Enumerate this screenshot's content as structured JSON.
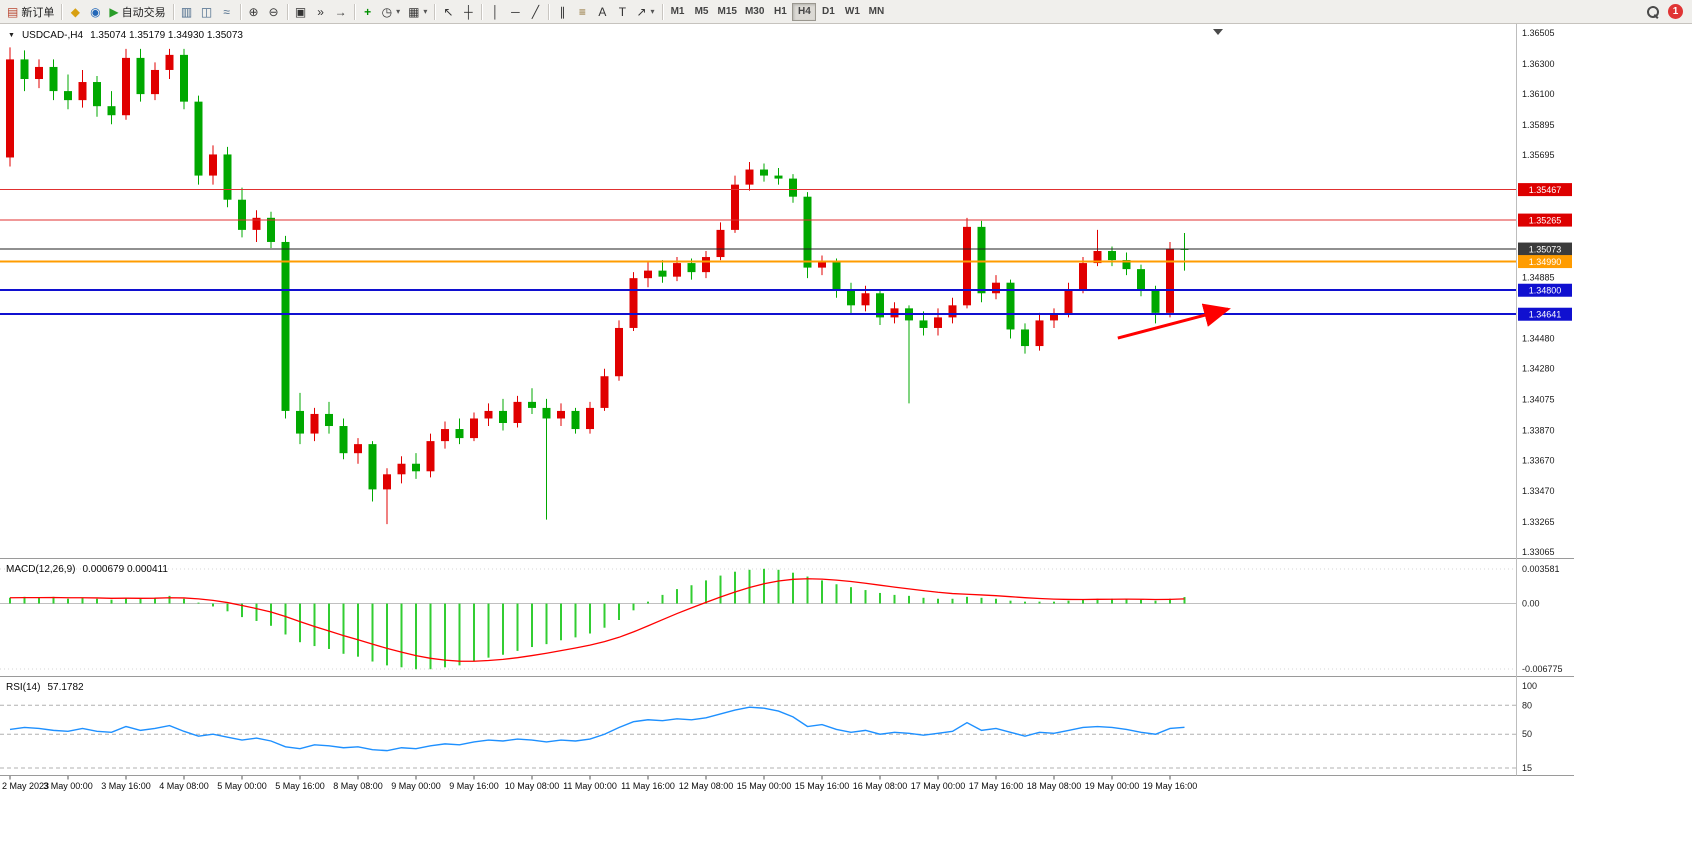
{
  "toolbar": {
    "new_order_label": "新订单",
    "algo_trading_label": "自动交易",
    "timeframes": [
      "M1",
      "M5",
      "M15",
      "M30",
      "H1",
      "H4",
      "D1",
      "W1",
      "MN"
    ],
    "active_timeframe": "H4",
    "notification_count": "1",
    "icons": {
      "new_order": "▤",
      "metaeditor": "◆",
      "market_watch": "◉",
      "algo_trading": "▶",
      "bar_chart": "▥",
      "candle_chart": "◫",
      "line_chart": "≈",
      "zoom_in": "⊕",
      "zoom_out": "⊖",
      "tile_windows": "▣",
      "auto_scroll": "»",
      "chart_shift": "→",
      "indicators": "+",
      "periods": "◷",
      "templates": "▦",
      "cursor": "↖",
      "crosshair": "┼",
      "vertical_line": "│",
      "horizontal_line": "─",
      "trend_line": "╱",
      "channel": "∥",
      "fibonacci": "≡",
      "text": "A",
      "text_label": "T",
      "arrow_tool": "↗",
      "dropdown": "▾"
    }
  },
  "main_chart": {
    "dropdown_glyph": "▼",
    "symbol_label": "USDCAD-,H4",
    "ohlc_label": "1.35074 1.35179 1.34930 1.35073"
  },
  "macd_panel": {
    "label": "MACD(12,26,9)",
    "values": "0.000679 0.000411"
  },
  "rsi_panel": {
    "label": "RSI(14)",
    "value": "57.1782"
  },
  "chart_data": [
    {
      "type": "candlestick",
      "symbol": "USDCAD-",
      "timeframe": "H4",
      "ohlc_current": {
        "open": 1.35074,
        "high": 1.35179,
        "low": 1.3493,
        "close": 1.35073
      },
      "price_range": [
        1.33065,
        1.36505
      ],
      "colors": {
        "bull": "#e00000",
        "bear": "#00a800"
      },
      "y_axis_labels": [
        "1.36505",
        "1.36300",
        "1.36100",
        "1.35895",
        "1.35695",
        "1.34885",
        "1.34480",
        "1.34280",
        "1.34075",
        "1.33870",
        "1.33670",
        "1.33470",
        "1.33265",
        "1.33065"
      ],
      "horizontal_lines": [
        {
          "price": 1.35467,
          "color": "#e03030",
          "width": 1,
          "badge": "1.35467",
          "badge_color": "#dd0000"
        },
        {
          "price": 1.35265,
          "color": "#e03030",
          "width": 1,
          "badge": "1.35265",
          "badge_color": "#dd0000"
        },
        {
          "price": 1.35073,
          "color": "#222222",
          "width": 1,
          "badge": "1.35073",
          "badge_color": "#3b3b3b"
        },
        {
          "price": 1.3499,
          "color": "#ff9c00",
          "width": 2,
          "badge": "1.34990",
          "badge_color": "#ff9c00"
        },
        {
          "price": 1.348,
          "color": "#1010d0",
          "width": 2,
          "badge": "1.34800",
          "badge_color": "#1010d0"
        },
        {
          "price": 1.34641,
          "color": "#1010d0",
          "width": 2,
          "badge": "1.34641",
          "badge_color": "#1010d0"
        }
      ],
      "annotations": [
        {
          "type": "arrow",
          "from": {
            "index": 76.4,
            "price": 1.34483
          },
          "to": {
            "index": 84.0,
            "price": 1.34675
          },
          "color": "#ff0000",
          "width": 3
        }
      ],
      "time_labels": [
        "2 May 2023",
        "3 May 00:00",
        "3 May 16:00",
        "4 May 08:00",
        "5 May 00:00",
        "5 May 16:00",
        "8 May 08:00",
        "9 May 00:00",
        "9 May 16:00",
        "10 May 08:00",
        "11 May 00:00",
        "11 May 16:00",
        "12 May 08:00",
        "15 May 00:00",
        "15 May 16:00",
        "16 May 08:00",
        "17 May 00:00",
        "17 May 16:00",
        "18 May 08:00",
        "19 May 00:00",
        "19 May 16:00"
      ],
      "label_every": 4,
      "candles": [
        [
          1.3568,
          1.3641,
          1.3562,
          1.3633
        ],
        [
          1.3633,
          1.3639,
          1.3612,
          1.362
        ],
        [
          1.362,
          1.3633,
          1.3614,
          1.3628
        ],
        [
          1.3628,
          1.3633,
          1.3606,
          1.3612
        ],
        [
          1.3612,
          1.3623,
          1.36,
          1.3606
        ],
        [
          1.3606,
          1.3626,
          1.3601,
          1.3618
        ],
        [
          1.3618,
          1.3622,
          1.3595,
          1.3602
        ],
        [
          1.3602,
          1.3612,
          1.359,
          1.3596
        ],
        [
          1.3596,
          1.364,
          1.3593,
          1.3634
        ],
        [
          1.3634,
          1.364,
          1.3605,
          1.361
        ],
        [
          1.361,
          1.3631,
          1.3606,
          1.3626
        ],
        [
          1.3626,
          1.364,
          1.362,
          1.3636
        ],
        [
          1.3636,
          1.364,
          1.36,
          1.3605
        ],
        [
          1.3605,
          1.3609,
          1.355,
          1.3556
        ],
        [
          1.3556,
          1.3576,
          1.355,
          1.357
        ],
        [
          1.357,
          1.3575,
          1.3535,
          1.354
        ],
        [
          1.354,
          1.3548,
          1.3515,
          1.352
        ],
        [
          1.352,
          1.3533,
          1.3512,
          1.3528
        ],
        [
          1.3528,
          1.3532,
          1.3508,
          1.3512
        ],
        [
          1.3512,
          1.3516,
          1.3395,
          1.34
        ],
        [
          1.34,
          1.3412,
          1.3378,
          1.3385
        ],
        [
          1.3385,
          1.3402,
          1.338,
          1.3398
        ],
        [
          1.3398,
          1.3406,
          1.3385,
          1.339
        ],
        [
          1.339,
          1.3395,
          1.3368,
          1.3372
        ],
        [
          1.3372,
          1.3382,
          1.3365,
          1.3378
        ],
        [
          1.3378,
          1.338,
          1.334,
          1.3348
        ],
        [
          1.3348,
          1.3362,
          1.3325,
          1.3358
        ],
        [
          1.3358,
          1.337,
          1.3352,
          1.3365
        ],
        [
          1.3365,
          1.3372,
          1.3355,
          1.336
        ],
        [
          1.336,
          1.3385,
          1.3356,
          1.338
        ],
        [
          1.338,
          1.3393,
          1.3375,
          1.3388
        ],
        [
          1.3388,
          1.3395,
          1.3378,
          1.3382
        ],
        [
          1.3382,
          1.3399,
          1.338,
          1.3395
        ],
        [
          1.3395,
          1.3405,
          1.339,
          1.34
        ],
        [
          1.34,
          1.3408,
          1.3387,
          1.3392
        ],
        [
          1.3392,
          1.341,
          1.3389,
          1.3406
        ],
        [
          1.3406,
          1.3415,
          1.3398,
          1.3402
        ],
        [
          1.3402,
          1.3408,
          1.3328,
          1.3395
        ],
        [
          1.3395,
          1.3405,
          1.339,
          1.34
        ],
        [
          1.34,
          1.3402,
          1.3385,
          1.3388
        ],
        [
          1.3388,
          1.3406,
          1.3385,
          1.3402
        ],
        [
          1.3402,
          1.3428,
          1.34,
          1.3423
        ],
        [
          1.3423,
          1.346,
          1.342,
          1.3455
        ],
        [
          1.3455,
          1.3492,
          1.3453,
          1.3488
        ],
        [
          1.3488,
          1.3499,
          1.3482,
          1.3493
        ],
        [
          1.3493,
          1.35,
          1.3485,
          1.3489
        ],
        [
          1.3489,
          1.3502,
          1.3486,
          1.3498
        ],
        [
          1.3498,
          1.3501,
          1.3487,
          1.3492
        ],
        [
          1.3492,
          1.3506,
          1.3488,
          1.3502
        ],
        [
          1.3502,
          1.3525,
          1.35,
          1.352
        ],
        [
          1.352,
          1.3556,
          1.3518,
          1.355
        ],
        [
          1.355,
          1.3565,
          1.3546,
          1.356
        ],
        [
          1.356,
          1.3564,
          1.3552,
          1.3556
        ],
        [
          1.3556,
          1.3561,
          1.355,
          1.3554
        ],
        [
          1.3554,
          1.3557,
          1.3538,
          1.3542
        ],
        [
          1.3542,
          1.3545,
          1.3488,
          1.3495
        ],
        [
          1.3495,
          1.3503,
          1.349,
          1.3499
        ],
        [
          1.3499,
          1.3501,
          1.3475,
          1.348
        ],
        [
          1.348,
          1.3485,
          1.3464,
          1.347
        ],
        [
          1.347,
          1.3483,
          1.3466,
          1.3478
        ],
        [
          1.3478,
          1.348,
          1.3457,
          1.3462
        ],
        [
          1.3462,
          1.3472,
          1.3458,
          1.3468
        ],
        [
          1.3468,
          1.347,
          1.3405,
          1.346
        ],
        [
          1.346,
          1.3466,
          1.345,
          1.3455
        ],
        [
          1.3455,
          1.3468,
          1.345,
          1.3462
        ],
        [
          1.3462,
          1.3475,
          1.3458,
          1.347
        ],
        [
          1.347,
          1.3528,
          1.3468,
          1.3522
        ],
        [
          1.3522,
          1.3526,
          1.3472,
          1.3478
        ],
        [
          1.3478,
          1.349,
          1.3474,
          1.3485
        ],
        [
          1.3485,
          1.3487,
          1.3448,
          1.3454
        ],
        [
          1.3454,
          1.3458,
          1.3438,
          1.3443
        ],
        [
          1.3443,
          1.3465,
          1.344,
          1.346
        ],
        [
          1.346,
          1.3468,
          1.3455,
          1.3464
        ],
        [
          1.3464,
          1.3485,
          1.3462,
          1.348
        ],
        [
          1.348,
          1.3502,
          1.3478,
          1.3498
        ],
        [
          1.3498,
          1.352,
          1.3496,
          1.3506
        ],
        [
          1.3506,
          1.3509,
          1.3496,
          1.35
        ],
        [
          1.35,
          1.3505,
          1.349,
          1.3494
        ],
        [
          1.3494,
          1.3497,
          1.3476,
          1.348
        ],
        [
          1.348,
          1.3483,
          1.3458,
          1.3465
        ],
        [
          1.3465,
          1.3512,
          1.3462,
          1.35074
        ],
        [
          1.35074,
          1.35179,
          1.3493,
          1.35073
        ]
      ]
    },
    {
      "type": "macd",
      "label": "MACD(12,26,9)",
      "current_values": [
        0.000679,
        0.000411
      ],
      "range": [
        -0.006775,
        0.003581
      ],
      "y_labels": [
        "0.003581",
        "0.00",
        "-0.006775"
      ],
      "histogram_color": "#32cd32",
      "signal_color": "#ff0000",
      "signal_period": 9,
      "histogram": [
        0.0006,
        0.0007,
        0.0006,
        0.0007,
        0.0005,
        0.0006,
        0.0005,
        0.0004,
        0.0006,
        0.0005,
        0.0006,
        0.0008,
        0.0005,
        0.0001,
        -0.0003,
        -0.0008,
        -0.0014,
        -0.0018,
        -0.0023,
        -0.0032,
        -0.004,
        -0.0044,
        -0.0047,
        -0.0052,
        -0.0055,
        -0.006,
        -0.0064,
        -0.0066,
        -0.0068,
        -0.0068,
        -0.0066,
        -0.0064,
        -0.006,
        -0.0056,
        -0.0053,
        -0.0049,
        -0.0045,
        -0.0042,
        -0.0038,
        -0.0035,
        -0.0031,
        -0.0025,
        -0.0017,
        -0.0007,
        0.0002,
        0.0009,
        0.0015,
        0.0019,
        0.0024,
        0.0029,
        0.0033,
        0.0035,
        0.0036,
        0.0035,
        0.0032,
        0.0028,
        0.0024,
        0.002,
        0.0017,
        0.0014,
        0.0011,
        0.0009,
        0.0008,
        0.0006,
        0.0005,
        0.0005,
        0.0007,
        0.0006,
        0.0005,
        0.0003,
        0.0002,
        0.0002,
        0.0002,
        0.0003,
        0.0004,
        0.0005,
        0.0005,
        0.0005,
        0.0004,
        0.0003,
        0.0005,
        0.000679
      ]
    },
    {
      "type": "line",
      "label": "RSI(14)",
      "current_value": 57.1782,
      "color": "#1e90ff",
      "range": [
        15,
        100
      ],
      "levels": [
        80,
        50,
        15
      ],
      "y_labels": [
        "100",
        "80",
        "50",
        "15"
      ],
      "values": [
        55,
        57,
        56,
        54,
        53,
        56,
        53,
        52,
        58,
        54,
        56,
        59,
        53,
        48,
        50,
        47,
        44,
        46,
        43,
        37,
        35,
        39,
        38,
        36,
        37,
        34,
        33,
        36,
        35,
        38,
        40,
        39,
        42,
        44,
        43,
        45,
        44,
        42,
        44,
        43,
        45,
        50,
        57,
        63,
        65,
        64,
        66,
        65,
        67,
        71,
        75,
        78,
        77,
        74,
        68,
        58,
        60,
        55,
        52,
        54,
        50,
        52,
        51,
        49,
        51,
        53,
        62,
        54,
        56,
        52,
        48,
        52,
        51,
        54,
        57,
        58,
        57,
        55,
        52,
        50,
        56,
        57.18
      ]
    }
  ]
}
